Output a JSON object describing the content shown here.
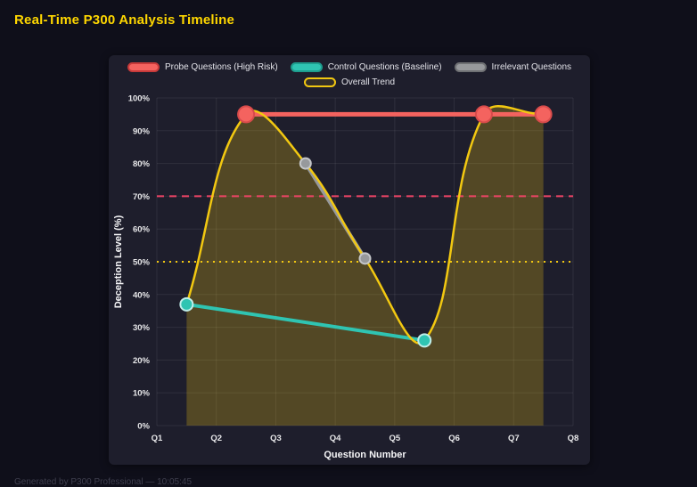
{
  "page": {
    "title": "Real-Time P300 Analysis Timeline",
    "footer": "Generated by P300 Professional — 10:05:45",
    "background": "#0f0f1a",
    "panel_background": "#1e1e2c",
    "title_color": "#ffd700"
  },
  "chart_data": {
    "type": "line",
    "xlabel": "Question Number",
    "ylabel": "Deception Level (%)",
    "x_ticks": [
      "Q1",
      "Q2",
      "Q3",
      "Q4",
      "Q5",
      "Q6",
      "Q7",
      "Q8"
    ],
    "x_range": [
      1,
      8
    ],
    "ylim": [
      0,
      100
    ],
    "y_tick_step": 10,
    "y_tick_suffix": "%",
    "grid": true,
    "legend_position": "top",
    "series": [
      {
        "name": "Probe Questions (High Risk)",
        "color": "#f4635f",
        "point_border": "#d84b4b",
        "legend_fill": "#f4635f",
        "legend_border": "#c73a3a",
        "line_width": 5,
        "point_radius": 9,
        "smooth": false,
        "points": [
          {
            "x": 2.5,
            "y": 95
          },
          {
            "x": 6.5,
            "y": 95
          },
          {
            "x": 7.5,
            "y": 95
          }
        ]
      },
      {
        "name": "Control Questions (Baseline)",
        "color": "#2fc4b2",
        "point_border": "#bfeeea",
        "legend_fill": "#2fc4b2",
        "legend_border": "#1e9c8d",
        "line_width": 4,
        "point_radius": 7,
        "smooth": false,
        "points": [
          {
            "x": 1.5,
            "y": 37
          },
          {
            "x": 5.5,
            "y": 26
          }
        ]
      },
      {
        "name": "Irrelevant Questions",
        "color": "#97999c",
        "point_border": "#c4c6c9",
        "legend_fill": "#97999c",
        "legend_border": "#6f7174",
        "line_width": 4,
        "point_radius": 6,
        "smooth": false,
        "points": [
          {
            "x": 3.5,
            "y": 80
          },
          {
            "x": 4.5,
            "y": 51
          }
        ]
      },
      {
        "name": "Overall Trend",
        "color": "#f2c811",
        "fill": "rgba(242,200,17,0.25)",
        "legend_fill": "rgba(242,200,17,0.10)",
        "legend_border": "#f2c811",
        "line_width": 2.5,
        "point_radius": 0,
        "smooth": true,
        "points": [
          {
            "x": 1.5,
            "y": 37
          },
          {
            "x": 2.5,
            "y": 95
          },
          {
            "x": 3.5,
            "y": 80
          },
          {
            "x": 4.5,
            "y": 51
          },
          {
            "x": 5.5,
            "y": 26
          },
          {
            "x": 6.5,
            "y": 95
          },
          {
            "x": 7.5,
            "y": 95
          }
        ]
      }
    ],
    "thresholds": [
      {
        "value": 70,
        "color": "#ee4466",
        "dash": "8 6",
        "width": 2
      },
      {
        "value": 50,
        "color": "#f2c811",
        "dash": "2 5",
        "width": 2
      }
    ]
  }
}
